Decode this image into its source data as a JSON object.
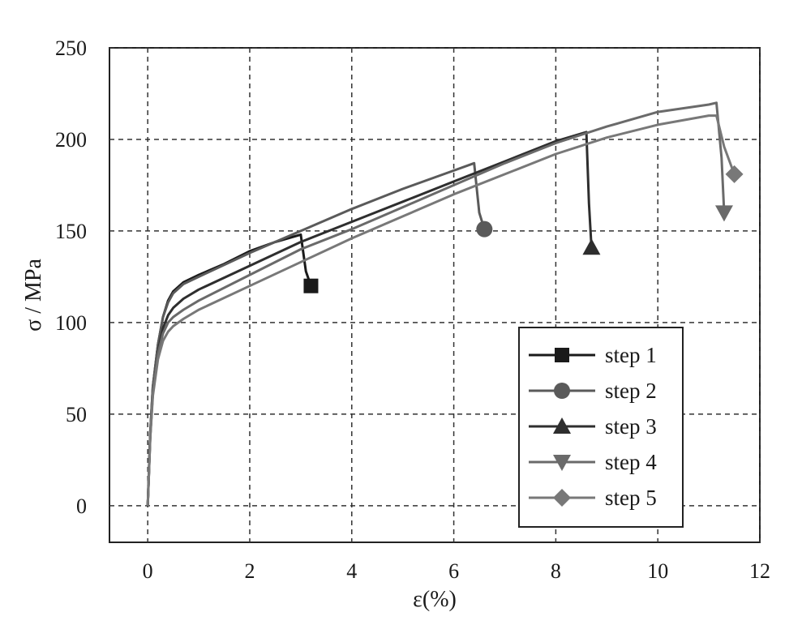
{
  "chart_data": {
    "type": "line",
    "title": "",
    "xlabel": "ε(%)",
    "ylabel": "σ / MPa",
    "xlim": [
      -0.75,
      12
    ],
    "ylim": [
      -20,
      250
    ],
    "xticks": [
      0,
      2,
      4,
      6,
      8,
      10,
      12
    ],
    "yticks": [
      0,
      50,
      100,
      150,
      200,
      250
    ],
    "grid": true,
    "legend_position": "bottom-right",
    "series": [
      {
        "name": "step 1",
        "color": "#1a1a1a",
        "marker": "square",
        "points": [
          [
            0,
            0
          ],
          [
            0.05,
            40
          ],
          [
            0.1,
            65
          ],
          [
            0.2,
            88
          ],
          [
            0.3,
            103
          ],
          [
            0.4,
            112
          ],
          [
            0.5,
            117
          ],
          [
            0.7,
            122
          ],
          [
            1.0,
            126
          ],
          [
            1.5,
            132
          ],
          [
            2.0,
            139
          ],
          [
            2.5,
            144
          ],
          [
            3.0,
            148
          ],
          [
            3.1,
            128
          ],
          [
            3.2,
            120
          ]
        ]
      },
      {
        "name": "step 2",
        "color": "#5a5a5a",
        "marker": "circle",
        "points": [
          [
            0,
            0
          ],
          [
            0.05,
            40
          ],
          [
            0.1,
            65
          ],
          [
            0.2,
            88
          ],
          [
            0.3,
            103
          ],
          [
            0.4,
            111
          ],
          [
            0.5,
            116
          ],
          [
            0.7,
            121
          ],
          [
            1.0,
            125
          ],
          [
            2.0,
            138
          ],
          [
            3.0,
            150
          ],
          [
            4.0,
            162
          ],
          [
            5.0,
            173
          ],
          [
            6.0,
            183
          ],
          [
            6.4,
            187
          ],
          [
            6.5,
            160
          ],
          [
            6.6,
            151
          ]
        ]
      },
      {
        "name": "step 3",
        "color": "#2e2e2e",
        "marker": "triangle-up",
        "points": [
          [
            0,
            0
          ],
          [
            0.05,
            38
          ],
          [
            0.1,
            62
          ],
          [
            0.2,
            84
          ],
          [
            0.3,
            97
          ],
          [
            0.4,
            104
          ],
          [
            0.5,
            108
          ],
          [
            0.7,
            113
          ],
          [
            1.0,
            118
          ],
          [
            2.0,
            131
          ],
          [
            3.0,
            144
          ],
          [
            4.0,
            155
          ],
          [
            5.0,
            166
          ],
          [
            6.0,
            177
          ],
          [
            7.0,
            188
          ],
          [
            8.0,
            199
          ],
          [
            8.6,
            204
          ],
          [
            8.65,
            165
          ],
          [
            8.7,
            141
          ]
        ]
      },
      {
        "name": "step 4",
        "color": "#6a6a6a",
        "marker": "triangle-down",
        "points": [
          [
            0,
            0
          ],
          [
            0.05,
            38
          ],
          [
            0.1,
            62
          ],
          [
            0.2,
            83
          ],
          [
            0.3,
            94
          ],
          [
            0.4,
            100
          ],
          [
            0.5,
            103
          ],
          [
            0.7,
            107
          ],
          [
            1.0,
            112
          ],
          [
            2.0,
            126
          ],
          [
            3.0,
            140
          ],
          [
            4.0,
            151
          ],
          [
            5.0,
            163
          ],
          [
            6.0,
            175
          ],
          [
            7.0,
            187
          ],
          [
            8.0,
            198
          ],
          [
            9.0,
            207
          ],
          [
            10.0,
            215
          ],
          [
            11.0,
            219
          ],
          [
            11.15,
            220
          ],
          [
            11.25,
            190
          ],
          [
            11.3,
            160
          ]
        ]
      },
      {
        "name": "step 5",
        "color": "#787878",
        "marker": "diamond",
        "points": [
          [
            0,
            0
          ],
          [
            0.05,
            37
          ],
          [
            0.1,
            60
          ],
          [
            0.2,
            80
          ],
          [
            0.3,
            90
          ],
          [
            0.4,
            95
          ],
          [
            0.5,
            98
          ],
          [
            0.7,
            102
          ],
          [
            1.0,
            107
          ],
          [
            2.0,
            120
          ],
          [
            3.0,
            133
          ],
          [
            4.0,
            146
          ],
          [
            5.0,
            158
          ],
          [
            6.0,
            170
          ],
          [
            7.0,
            181
          ],
          [
            8.0,
            192
          ],
          [
            9.0,
            201
          ],
          [
            10.0,
            208
          ],
          [
            11.0,
            213
          ],
          [
            11.15,
            213
          ],
          [
            11.3,
            196
          ],
          [
            11.5,
            181
          ]
        ]
      }
    ]
  }
}
